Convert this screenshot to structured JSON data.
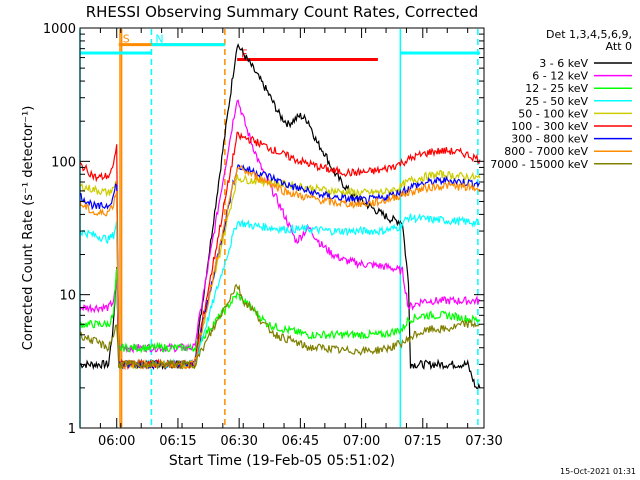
{
  "chart_data": {
    "type": "line",
    "title": "RHESSI Observing Summary Count Rates, Corrected",
    "xlabel": "Start Time (19-Feb-05 05:51:02)",
    "ylabel": "Corrected Count Rate (s⁻¹ detector⁻¹)",
    "yscale": "log",
    "ylim": [
      1,
      1000
    ],
    "xlim": [
      0,
      99
    ],
    "x_units": "minutes after 05:51:02",
    "x_ticks": [
      {
        "v": 9,
        "label": "06:00"
      },
      {
        "v": 24,
        "label": "06:15"
      },
      {
        "v": 39,
        "label": "06:30"
      },
      {
        "v": 54,
        "label": "06:45"
      },
      {
        "v": 69,
        "label": "07:00"
      },
      {
        "v": 84,
        "label": "07:15"
      },
      {
        "v": 99,
        "label": "07:30"
      }
    ],
    "y_ticks": [
      {
        "v": 1,
        "label": "1"
      },
      {
        "v": 10,
        "label": "10"
      },
      {
        "v": 100,
        "label": "100"
      },
      {
        "v": 1000,
        "label": "1000"
      }
    ],
    "legend": {
      "placement": "right",
      "header_line1": "Det 1,3,4,5,6,9,",
      "header_line2": "Att 0"
    },
    "series": [
      {
        "name": "3 - 6 keV",
        "color": "#000000",
        "points": [
          [
            0,
            3
          ],
          [
            7,
            3
          ],
          [
            8.2,
            6
          ],
          [
            9,
            16
          ],
          [
            9.5,
            3
          ],
          [
            12,
            3
          ],
          [
            28,
            3
          ],
          [
            38.5,
            760
          ],
          [
            42,
            520
          ],
          [
            46,
            330
          ],
          [
            49,
            220
          ],
          [
            51,
            190
          ],
          [
            54,
            220
          ],
          [
            56,
            200
          ],
          [
            58,
            140
          ],
          [
            60,
            115
          ],
          [
            62,
            85
          ],
          [
            64,
            70
          ],
          [
            67,
            55
          ],
          [
            70,
            48
          ],
          [
            73,
            42
          ],
          [
            76,
            37
          ],
          [
            79,
            35
          ],
          [
            80.5,
            12
          ],
          [
            81,
            3
          ],
          [
            88,
            3
          ],
          [
            95,
            3
          ],
          [
            97,
            2
          ],
          [
            98,
            2
          ]
        ]
      },
      {
        "name": "6 - 12 keV",
        "color": "#ff00ff",
        "points": [
          [
            0,
            8
          ],
          [
            7,
            8
          ],
          [
            8.2,
            9
          ],
          [
            9,
            12
          ],
          [
            9.5,
            4
          ],
          [
            12,
            4
          ],
          [
            28,
            4
          ],
          [
            38.5,
            300
          ],
          [
            41,
            170
          ],
          [
            44,
            95
          ],
          [
            47,
            62
          ],
          [
            50,
            40
          ],
          [
            53,
            25
          ],
          [
            56,
            32
          ],
          [
            59,
            24
          ],
          [
            62,
            20
          ],
          [
            65,
            18
          ],
          [
            69,
            17
          ],
          [
            73,
            16.5
          ],
          [
            76,
            16
          ],
          [
            79,
            15
          ],
          [
            80.5,
            8
          ],
          [
            84,
            9
          ],
          [
            90,
            9
          ],
          [
            96,
            9
          ],
          [
            98,
            9
          ]
        ]
      },
      {
        "name": "12 - 25 keV",
        "color": "#00ff00",
        "points": [
          [
            0,
            6
          ],
          [
            7,
            6
          ],
          [
            8.2,
            7
          ],
          [
            9,
            15
          ],
          [
            9.5,
            4
          ],
          [
            12,
            4
          ],
          [
            28,
            4
          ],
          [
            38.5,
            10
          ],
          [
            42,
            8
          ],
          [
            46,
            6
          ],
          [
            50,
            5.5
          ],
          [
            56,
            5
          ],
          [
            62,
            5
          ],
          [
            68,
            5
          ],
          [
            74,
            5
          ],
          [
            79,
            5.5
          ],
          [
            80.5,
            6.5
          ],
          [
            84,
            7
          ],
          [
            90,
            7
          ],
          [
            96,
            6.5
          ],
          [
            98,
            6.5
          ]
        ]
      },
      {
        "name": "25 - 50 keV",
        "color": "#00ffff",
        "points": [
          [
            0,
            30
          ],
          [
            7,
            26
          ],
          [
            8.2,
            28
          ],
          [
            9,
            35
          ],
          [
            9.5,
            3
          ],
          [
            12,
            3
          ],
          [
            28,
            3
          ],
          [
            38.5,
            35
          ],
          [
            42,
            33
          ],
          [
            46,
            32
          ],
          [
            50,
            31
          ],
          [
            56,
            31
          ],
          [
            62,
            30
          ],
          [
            68,
            30
          ],
          [
            74,
            30
          ],
          [
            78,
            32
          ],
          [
            80.5,
            38
          ],
          [
            84,
            37
          ],
          [
            90,
            36
          ],
          [
            96,
            35
          ],
          [
            98,
            34
          ]
        ]
      },
      {
        "name": "50 - 100 keV",
        "color": "#cccc00",
        "points": [
          [
            0,
            65
          ],
          [
            7,
            58
          ],
          [
            8.2,
            62
          ],
          [
            9,
            72
          ],
          [
            9.5,
            3
          ],
          [
            12,
            3
          ],
          [
            28,
            3
          ],
          [
            38.5,
            75
          ],
          [
            42,
            72
          ],
          [
            46,
            70
          ],
          [
            52,
            66
          ],
          [
            58,
            62
          ],
          [
            64,
            59
          ],
          [
            70,
            58
          ],
          [
            75,
            59
          ],
          [
            78,
            63
          ],
          [
            81,
            72
          ],
          [
            84,
            76
          ],
          [
            88,
            80
          ],
          [
            92,
            78
          ],
          [
            96,
            76
          ],
          [
            98,
            75
          ]
        ]
      },
      {
        "name": "100 - 300 keV",
        "color": "#ff0000",
        "points": [
          [
            0,
            95
          ],
          [
            4,
            75
          ],
          [
            7,
            78
          ],
          [
            8.2,
            90
          ],
          [
            9,
            140
          ],
          [
            9.5,
            3
          ],
          [
            12,
            3
          ],
          [
            28,
            3
          ],
          [
            38.5,
            155
          ],
          [
            42,
            145
          ],
          [
            46,
            128
          ],
          [
            50,
            112
          ],
          [
            54,
            100
          ],
          [
            58,
            92
          ],
          [
            62,
            85
          ],
          [
            66,
            82
          ],
          [
            70,
            83
          ],
          [
            74,
            86
          ],
          [
            78,
            95
          ],
          [
            82,
            108
          ],
          [
            86,
            118
          ],
          [
            90,
            120
          ],
          [
            94,
            115
          ],
          [
            98,
            103
          ]
        ]
      },
      {
        "name": "300 - 800 keV",
        "color": "#0000ff",
        "points": [
          [
            0,
            55
          ],
          [
            4,
            45
          ],
          [
            7,
            47
          ],
          [
            8.2,
            55
          ],
          [
            9,
            70
          ],
          [
            9.5,
            3
          ],
          [
            12,
            3
          ],
          [
            28,
            3
          ],
          [
            38.5,
            92
          ],
          [
            42,
            85
          ],
          [
            46,
            78
          ],
          [
            50,
            68
          ],
          [
            54,
            62
          ],
          [
            58,
            57
          ],
          [
            62,
            54
          ],
          [
            66,
            52
          ],
          [
            70,
            51
          ],
          [
            74,
            53
          ],
          [
            78,
            58
          ],
          [
            82,
            66
          ],
          [
            86,
            70
          ],
          [
            90,
            72
          ],
          [
            94,
            70
          ],
          [
            98,
            68
          ]
        ]
      },
      {
        "name": "800 - 7000 keV",
        "color": "#ff8c00",
        "points": [
          [
            0,
            48
          ],
          [
            4,
            40
          ],
          [
            7,
            42
          ],
          [
            8.2,
            48
          ],
          [
            9,
            62
          ],
          [
            9.5,
            3
          ],
          [
            12,
            3
          ],
          [
            28,
            3
          ],
          [
            38.5,
            90
          ],
          [
            42,
            80
          ],
          [
            46,
            70
          ],
          [
            50,
            60
          ],
          [
            54,
            55
          ],
          [
            58,
            52
          ],
          [
            62,
            49
          ],
          [
            66,
            48
          ],
          [
            70,
            48
          ],
          [
            74,
            50
          ],
          [
            78,
            55
          ],
          [
            82,
            60
          ],
          [
            86,
            64
          ],
          [
            90,
            66
          ],
          [
            94,
            64
          ],
          [
            98,
            62
          ]
        ]
      },
      {
        "name": "7000 - 15000 keV",
        "color": "#808000",
        "points": [
          [
            0,
            5
          ],
          [
            7,
            4
          ],
          [
            8.2,
            5
          ],
          [
            9,
            6
          ],
          [
            9.5,
            3
          ],
          [
            12,
            3
          ],
          [
            28,
            3
          ],
          [
            38.5,
            12
          ],
          [
            40,
            9
          ],
          [
            42,
            8
          ],
          [
            45,
            6
          ],
          [
            48,
            5
          ],
          [
            52,
            4.5
          ],
          [
            56,
            4
          ],
          [
            60,
            4
          ],
          [
            64,
            3.8
          ],
          [
            68,
            3.8
          ],
          [
            72,
            3.8
          ],
          [
            76,
            4
          ],
          [
            80,
            4.5
          ],
          [
            82,
            5
          ],
          [
            86,
            5.5
          ],
          [
            90,
            5.5
          ],
          [
            94,
            6
          ],
          [
            98,
            6
          ]
        ]
      }
    ],
    "vertical_markers": [
      {
        "type": "saa",
        "x": 0,
        "color": "#00ffff"
      },
      {
        "type": "saa",
        "x": 9.8,
        "color": "#ff8c00"
      },
      {
        "type": "saa",
        "x": 10.2,
        "color": "#ff8c00"
      },
      {
        "type": "night",
        "x": 17.5,
        "color": "#00ffff",
        "dashed": true
      },
      {
        "type": "night",
        "x": 35.5,
        "color": "#ff8c00",
        "dashed": true
      },
      {
        "type": "saa",
        "x": 78.5,
        "color": "#00ffff"
      },
      {
        "type": "night",
        "x": 97.5,
        "color": "#00ffff",
        "dashed": true
      }
    ],
    "horizontal_bars": [
      {
        "label": "S",
        "x0": 9.5,
        "x1": 35.5,
        "y": 750,
        "color": "#ff8c00"
      },
      {
        "label": "N",
        "x0": 17.5,
        "x1": 35.5,
        "y": 750,
        "color": "#00ffff"
      },
      {
        "label": "",
        "x0": 0,
        "x1": 17.5,
        "y": 650,
        "color": "#00ffff"
      },
      {
        "label": "F",
        "x0": 38.5,
        "x1": 73,
        "y": 580,
        "color": "#ff0000"
      },
      {
        "label": "",
        "x0": 78.5,
        "x1": 98,
        "y": 650,
        "color": "#00ffff"
      }
    ]
  },
  "footer": {
    "timestamp": "15-Oct-2021 01:31"
  }
}
